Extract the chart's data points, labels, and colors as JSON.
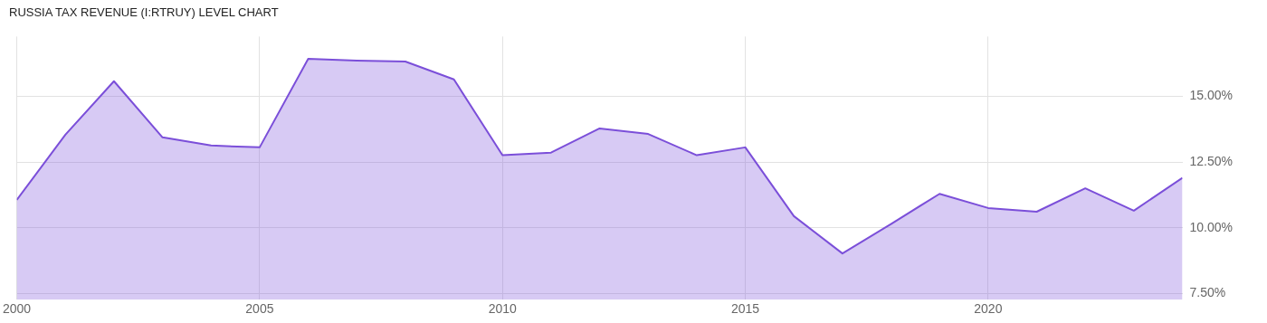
{
  "chart_data": {
    "type": "area",
    "title": "RUSSIA TAX REVENUE (I:RTRUY) LEVEL CHART",
    "x": [
      2000,
      2001,
      2002,
      2003,
      2004,
      2005,
      2006,
      2007,
      2008,
      2009,
      2010,
      2011,
      2012,
      2013,
      2014,
      2015,
      2016,
      2017,
      2018,
      2019,
      2020,
      2021,
      2022,
      2023,
      2024
    ],
    "series": [
      {
        "color": "#7b4fd9",
        "values": [
          11.06,
          13.54,
          15.58,
          13.44,
          13.13,
          13.06,
          16.43,
          16.36,
          16.33,
          15.65,
          12.76,
          12.86,
          13.78,
          13.57,
          12.76,
          13.06,
          10.44,
          9.02,
          10.14,
          11.29,
          10.75,
          10.61,
          11.5,
          10.65,
          11.9
        ]
      }
    ],
    "xlim": [
      2000,
      2024
    ],
    "xticks": [
      2000,
      2005,
      2010,
      2015,
      2020
    ],
    "ylim": [
      7.26,
      17.28
    ],
    "yticks": [
      {
        "value": 7.5,
        "label": "7.50%"
      },
      {
        "value": 10,
        "label": "10.00%"
      },
      {
        "value": 12.5,
        "label": "12.50%"
      },
      {
        "value": 15,
        "label": "15.00%"
      }
    ],
    "grid": true,
    "marker": "none",
    "line_style": "solid"
  }
}
